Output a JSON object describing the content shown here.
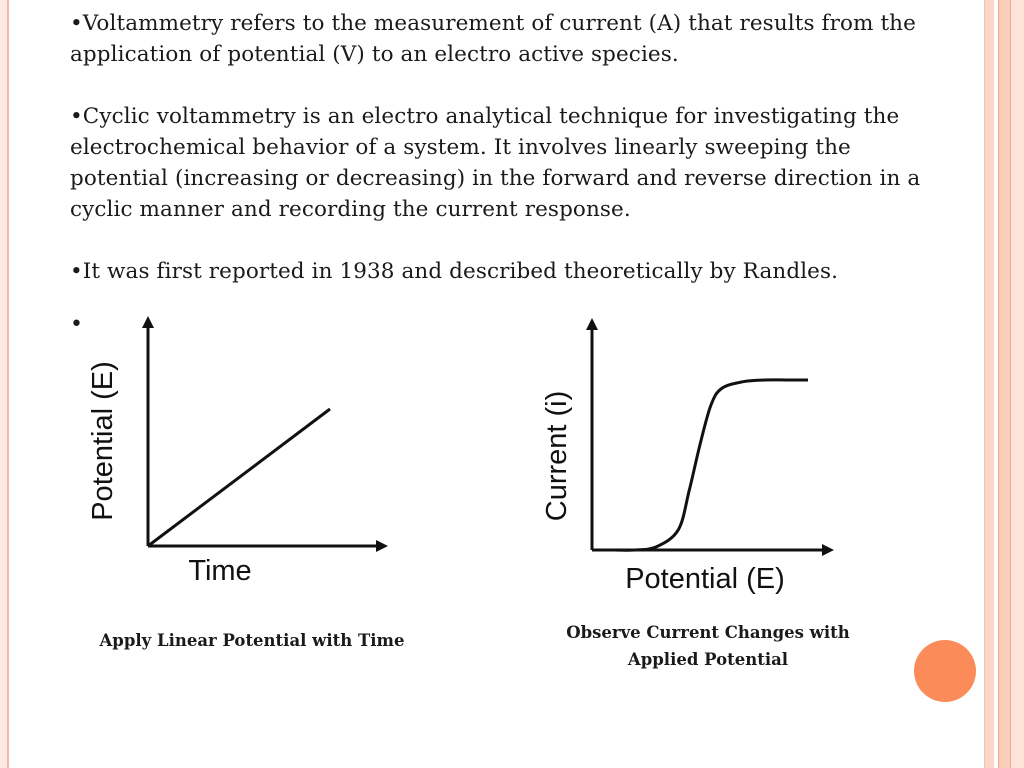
{
  "paragraphs": [
    "•Voltammetry refers to the measurement of current (A) that results from the application of potential (V) to an electro active species.",
    "•Cyclic voltammetry is an electro analytical technique for investigating the electrochemical behavior of a system. It involves linearly sweeping the potential (increasing or decreasing) in the forward and reverse direction in a cyclic manner and recording the current response.",
    "•It was first reported in 1938 and described theoretically by Randles."
  ],
  "lone_bullet": "•",
  "chart_data": [
    {
      "type": "line",
      "xlabel": "Time",
      "ylabel": "Potential (E)",
      "series": [
        {
          "x": [
            0,
            1
          ],
          "y": [
            0,
            1
          ]
        }
      ],
      "grid": false
    },
    {
      "type": "line",
      "xlabel": "Potential (E)",
      "ylabel": "Current (i)",
      "series": [
        {
          "x": [
            0,
            0.1,
            0.2,
            0.3,
            0.4,
            0.45,
            0.5,
            0.55,
            0.6,
            0.7,
            0.8,
            0.9,
            1.0
          ],
          "y": [
            0,
            0,
            0,
            0.02,
            0.12,
            0.35,
            0.62,
            0.85,
            0.95,
            0.99,
            1.0,
            1.0,
            1.0
          ]
        }
      ],
      "grid": false
    }
  ],
  "captions": {
    "left": "Apply Linear Potential with Time",
    "right_line1": "Observe Current Changes with",
    "right_line2": "Applied Potential"
  },
  "colors": {
    "accent_dot": "#fb8b59",
    "border": "#f3b8a3"
  }
}
